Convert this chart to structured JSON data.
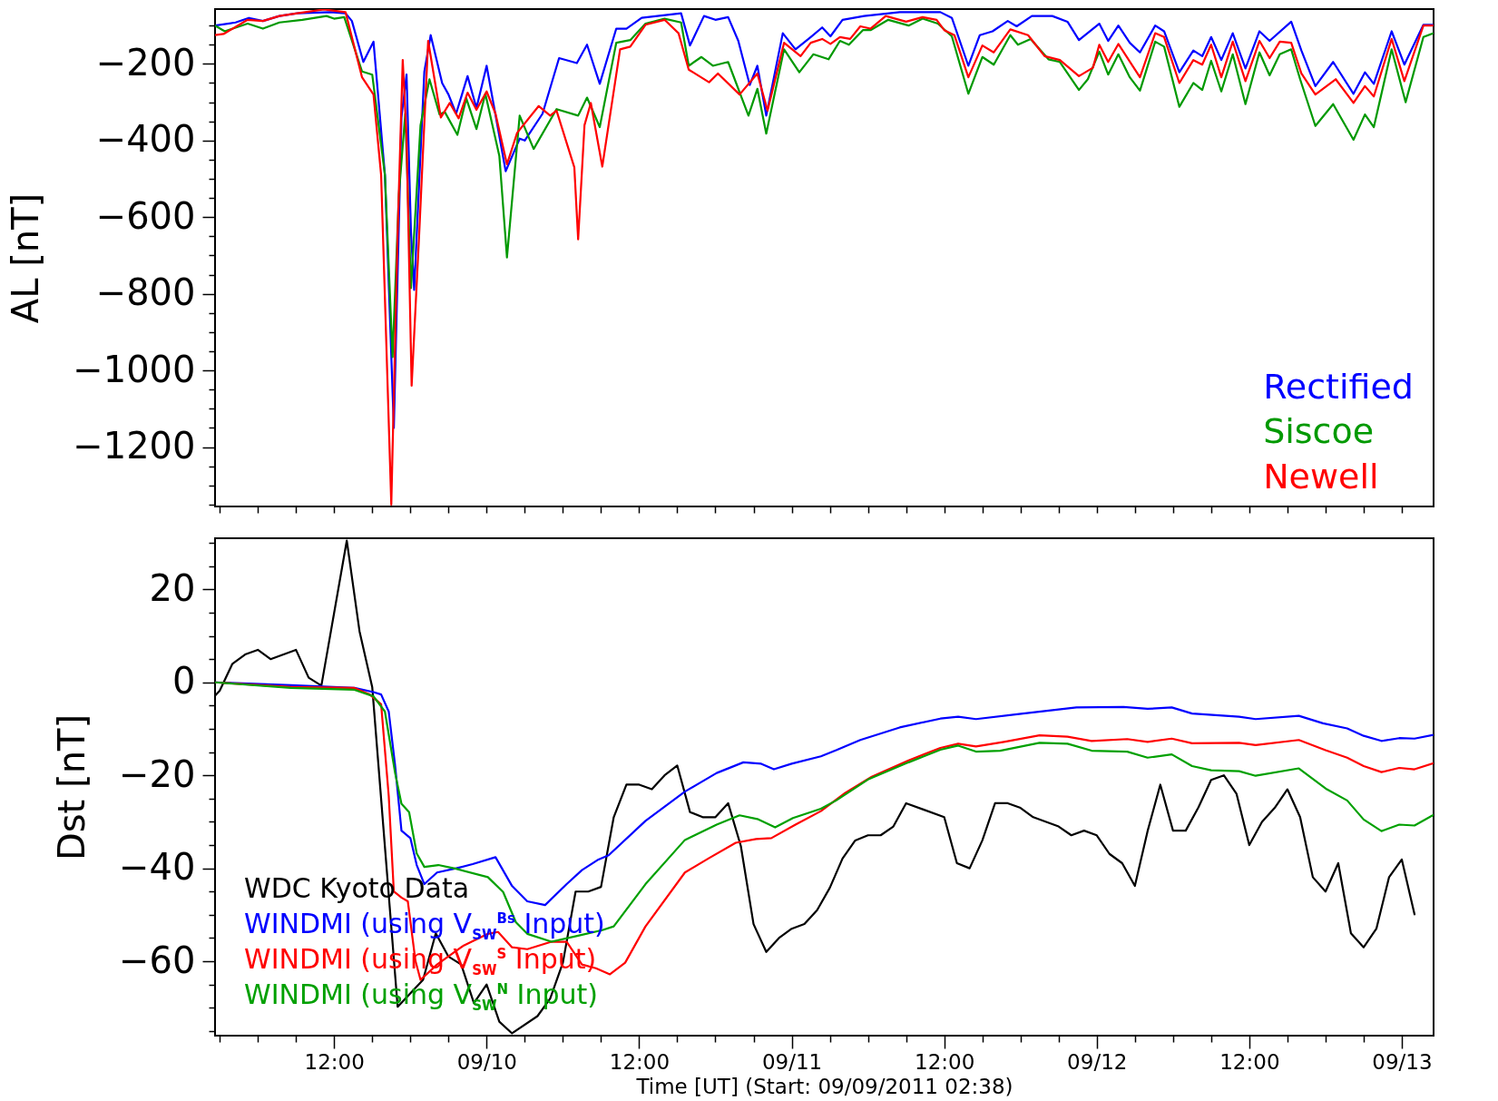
{
  "chart_data": [
    {
      "type": "line",
      "ylabel": "AL [nT]",
      "legend": "bottom right",
      "tick_labels": "y",
      "xlim": [
        "2011-09-09T02:38",
        "2011-09-13T02:30"
      ],
      "xticks": [
        {
          "value": "2011-09-09T03:00",
          "label": null
        },
        {
          "value": "2011-09-09T06:00",
          "label": null
        },
        {
          "value": "2011-09-09T09:00",
          "label": null
        },
        {
          "value": "2011-09-09T12:00",
          "label": null
        },
        {
          "value": "2011-09-09T15:00",
          "label": null
        },
        {
          "value": "2011-09-09T18:00",
          "label": null
        },
        {
          "value": "2011-09-09T21:00",
          "label": null
        },
        {
          "value": "2011-09-10T00:00",
          "label": null
        },
        {
          "value": "2011-09-10T03:00",
          "label": null
        },
        {
          "value": "2011-09-10T06:00",
          "label": null
        },
        {
          "value": "2011-09-10T09:00",
          "label": null
        },
        {
          "value": "2011-09-10T12:00",
          "label": null
        },
        {
          "value": "2011-09-10T15:00",
          "label": null
        },
        {
          "value": "2011-09-10T18:00",
          "label": null
        },
        {
          "value": "2011-09-10T21:00",
          "label": null
        },
        {
          "value": "2011-09-11T00:00",
          "label": null
        },
        {
          "value": "2011-09-11T03:00",
          "label": null
        },
        {
          "value": "2011-09-11T06:00",
          "label": null
        },
        {
          "value": "2011-09-11T09:00",
          "label": null
        },
        {
          "value": "2011-09-11T12:00",
          "label": null
        },
        {
          "value": "2011-09-11T15:00",
          "label": null
        },
        {
          "value": "2011-09-11T18:00",
          "label": null
        },
        {
          "value": "2011-09-11T21:00",
          "label": null
        },
        {
          "value": "2011-09-12T00:00",
          "label": null
        },
        {
          "value": "2011-09-12T03:00",
          "label": null
        },
        {
          "value": "2011-09-12T06:00",
          "label": null
        },
        {
          "value": "2011-09-12T09:00",
          "label": null
        },
        {
          "value": "2011-09-12T12:00",
          "label": null
        },
        {
          "value": "2011-09-12T15:00",
          "label": null
        },
        {
          "value": "2011-09-12T18:00",
          "label": null
        },
        {
          "value": "2011-09-12T21:00",
          "label": null
        },
        {
          "value": "2011-09-13T00:00",
          "label": null
        }
      ],
      "ylim": [
        -1355,
        -57
      ],
      "yticks": [
        {
          "value": -1350,
          "label": null
        },
        {
          "value": -1300,
          "label": null
        },
        {
          "value": -1250,
          "label": null
        },
        -1200,
        {
          "value": -1150,
          "label": null
        },
        {
          "value": -1100,
          "label": null
        },
        {
          "value": -1050,
          "label": null
        },
        -1000,
        {
          "value": -950,
          "label": null
        },
        {
          "value": -900,
          "label": null
        },
        {
          "value": -850,
          "label": null
        },
        -800,
        {
          "value": -750,
          "label": null
        },
        {
          "value": -700,
          "label": null
        },
        {
          "value": -650,
          "label": null
        },
        -600,
        {
          "value": -550,
          "label": null
        },
        {
          "value": -500,
          "label": null
        },
        {
          "value": -450,
          "label": null
        },
        -400,
        {
          "value": -350,
          "label": null
        },
        {
          "value": -300,
          "label": null
        },
        {
          "value": -250,
          "label": null
        },
        -200,
        {
          "value": -150,
          "label": null
        },
        {
          "value": -100,
          "label": null
        }
      ],
      "series": [
        {
          "name": "Rectified",
          "color": "#0000ff",
          "x": [
            "2011-09-09T02:38",
            "2011-09-09T04:15",
            "2011-09-09T05:18",
            "2011-09-09T06:24",
            "2011-09-09T07:42",
            "2011-09-09T09:06",
            "2011-09-09T11:42",
            "2011-09-09T12:54",
            "2011-09-09T13:24",
            "2011-09-09T14:18",
            "2011-09-09T15:06",
            "2011-09-09T16:00",
            "2011-09-09T16:42",
            "2011-09-09T17:18",
            "2011-09-09T17:42",
            "2011-09-09T18:03",
            "2011-09-09T18:18",
            "2011-09-09T19:06",
            "2011-09-09T19:36",
            "2011-09-09T20:30",
            "2011-09-09T21:00",
            "2011-09-09T21:36",
            "2011-09-09T22:30",
            "2011-09-09T23:12",
            "2011-09-10T00:00",
            "2011-09-10T01:30",
            "2011-09-10T02:36",
            "2011-09-10T03:00",
            "2011-09-10T04:24",
            "2011-09-10T05:42",
            "2011-09-10T07:06",
            "2011-09-10T07:54",
            "2011-09-10T08:54",
            "2011-09-10T10:12",
            "2011-09-10T11:00",
            "2011-09-10T12:12",
            "2011-09-10T15:18",
            "2011-09-10T16:00",
            "2011-09-10T17:06",
            "2011-09-10T18:00",
            "2011-09-10T19:00",
            "2011-09-10T19:48",
            "2011-09-10T20:42",
            "2011-09-10T21:18",
            "2011-09-10T22:00",
            "2011-09-10T23:18",
            "2011-09-11T00:18",
            "2011-09-11T01:30",
            "2011-09-11T02:24",
            "2011-09-11T03:03",
            "2011-09-11T04:00",
            "2011-09-11T05:42",
            "2011-09-11T08:30",
            "2011-09-11T11:42",
            "2011-09-11T12:36",
            "2011-09-11T13:54",
            "2011-09-11T14:48",
            "2011-09-11T15:48",
            "2011-09-11T17:00",
            "2011-09-11T17:42",
            "2011-09-11T18:54",
            "2011-09-11T20:30",
            "2011-09-11T21:42",
            "2011-09-11T22:36",
            "2011-09-12T00:12",
            "2011-09-12T00:54",
            "2011-09-12T01:42",
            "2011-09-12T02:36",
            "2011-09-12T03:24",
            "2011-09-12T04:36",
            "2011-09-12T05:18",
            "2011-09-12T06:30",
            "2011-09-12T07:36",
            "2011-09-12T08:18",
            "2011-09-12T09:00",
            "2011-09-12T09:48",
            "2011-09-12T10:42",
            "2011-09-12T11:42",
            "2011-09-12T12:48",
            "2011-09-12T13:36",
            "2011-09-12T15:18",
            "2011-09-12T16:06",
            "2011-09-12T17:12",
            "2011-09-12T18:36",
            "2011-09-12T20:12",
            "2011-09-12T21:06",
            "2011-09-12T21:48",
            "2011-09-12T23:12",
            "2011-09-13T00:12",
            "2011-09-13T01:42",
            "2011-09-13T02:30"
          ],
          "values": [
            -100,
            -92,
            -80,
            -88,
            -75,
            -68,
            -65,
            -68,
            -88,
            -195,
            -142,
            -490,
            -1150,
            -340,
            -228,
            -640,
            -790,
            -220,
            -125,
            -250,
            -280,
            -330,
            -232,
            -315,
            -205,
            -480,
            -395,
            -400,
            -330,
            -185,
            -198,
            -150,
            -252,
            -108,
            -108,
            -80,
            -68,
            -152,
            -75,
            -85,
            -78,
            -140,
            -255,
            -205,
            -335,
            -120,
            -162,
            -130,
            -105,
            -128,
            -85,
            -75,
            -65,
            -65,
            -80,
            -205,
            -125,
            -115,
            -88,
            -102,
            -75,
            -75,
            -90,
            -138,
            -95,
            -140,
            -100,
            -145,
            -170,
            -100,
            -115,
            -222,
            -165,
            -180,
            -130,
            -190,
            -120,
            -212,
            -115,
            -140,
            -90,
            -165,
            -258,
            -195,
            -278,
            -222,
            -252,
            -115,
            -202,
            -98,
            -98
          ]
        },
        {
          "name": "Siscoe",
          "color": "#009900",
          "x": [
            "2011-09-09T02:38",
            "2011-09-09T03:24",
            "2011-09-09T05:12",
            "2011-09-09T06:24",
            "2011-09-09T07:42",
            "2011-09-09T09:30",
            "2011-09-09T11:24",
            "2011-09-09T12:00",
            "2011-09-09T12:48",
            "2011-09-09T14:12",
            "2011-09-09T15:00",
            "2011-09-09T16:00",
            "2011-09-09T16:36",
            "2011-09-09T17:06",
            "2011-09-09T17:36",
            "2011-09-09T18:03",
            "2011-09-09T18:48",
            "2011-09-09T19:30",
            "2011-09-09T20:18",
            "2011-09-09T20:42",
            "2011-09-09T21:42",
            "2011-09-09T22:24",
            "2011-09-09T23:12",
            "2011-09-09T23:54",
            "2011-09-10T01:00",
            "2011-09-10T01:36",
            "2011-09-10T02:36",
            "2011-09-10T03:42",
            "2011-09-10T05:30",
            "2011-09-10T07:12",
            "2011-09-10T07:54",
            "2011-09-10T08:54",
            "2011-09-10T10:12",
            "2011-09-10T11:18",
            "2011-09-10T12:30",
            "2011-09-10T14:00",
            "2011-09-10T15:18",
            "2011-09-10T15:54",
            "2011-09-10T16:54",
            "2011-09-10T17:48",
            "2011-09-10T19:00",
            "2011-09-10T20:36",
            "2011-09-10T21:18",
            "2011-09-10T22:00",
            "2011-09-10T23:24",
            "2011-09-11T00:36",
            "2011-09-11T01:42",
            "2011-09-11T02:54",
            "2011-09-11T03:48",
            "2011-09-11T04:30",
            "2011-09-11T05:36",
            "2011-09-11T06:12",
            "2011-09-11T07:36",
            "2011-09-11T09:12",
            "2011-09-11T10:18",
            "2011-09-11T11:30",
            "2011-09-11T12:36",
            "2011-09-11T13:54",
            "2011-09-11T15:00",
            "2011-09-11T15:54",
            "2011-09-11T17:12",
            "2011-09-11T17:48",
            "2011-09-11T18:48",
            "2011-09-11T20:12",
            "2011-09-11T21:06",
            "2011-09-11T22:36",
            "2011-09-11T23:18",
            "2011-09-12T00:12",
            "2011-09-12T00:54",
            "2011-09-12T01:42",
            "2011-09-12T02:36",
            "2011-09-12T03:24",
            "2011-09-12T04:36",
            "2011-09-12T05:18",
            "2011-09-12T06:30",
            "2011-09-12T07:36",
            "2011-09-12T08:18",
            "2011-09-12T09:00",
            "2011-09-12T09:48",
            "2011-09-12T10:42",
            "2011-09-12T11:42",
            "2011-09-12T12:48",
            "2011-09-12T13:36",
            "2011-09-12T14:24",
            "2011-09-12T15:18",
            "2011-09-12T16:00",
            "2011-09-12T17:12",
            "2011-09-12T18:36",
            "2011-09-12T20:12",
            "2011-09-12T21:06",
            "2011-09-12T21:48",
            "2011-09-12T23:12",
            "2011-09-13T00:18",
            "2011-09-13T01:42",
            "2011-09-13T02:30"
          ],
          "values": [
            -100,
            -115,
            -95,
            -108,
            -92,
            -85,
            -75,
            -82,
            -78,
            -220,
            -228,
            -490,
            -965,
            -540,
            -330,
            -785,
            -360,
            -240,
            -332,
            -325,
            -385,
            -290,
            -370,
            -278,
            -440,
            -705,
            -335,
            -422,
            -318,
            -335,
            -288,
            -365,
            -145,
            -138,
            -95,
            -82,
            -92,
            -205,
            -182,
            -205,
            -195,
            -335,
            -265,
            -382,
            -162,
            -222,
            -175,
            -188,
            -140,
            -150,
            -112,
            -112,
            -85,
            -100,
            -82,
            -95,
            -128,
            -278,
            -182,
            -202,
            -125,
            -150,
            -135,
            -188,
            -195,
            -268,
            -240,
            -168,
            -228,
            -175,
            -235,
            -270,
            -142,
            -155,
            -312,
            -250,
            -268,
            -192,
            -272,
            -175,
            -305,
            -170,
            -230,
            -175,
            -162,
            -240,
            -362,
            -305,
            -398,
            -332,
            -365,
            -162,
            -300,
            -130,
            -120
          ]
        },
        {
          "name": "Newell",
          "color": "#ff0000",
          "x": [
            "2011-09-09T02:38",
            "2011-09-09T03:18",
            "2011-09-09T05:12",
            "2011-09-09T06:24",
            "2011-09-09T07:42",
            "2011-09-09T09:06",
            "2011-09-09T11:12",
            "2011-09-09T12:54",
            "2011-09-09T14:12",
            "2011-09-09T15:06",
            "2011-09-09T15:42",
            "2011-09-09T16:30",
            "2011-09-09T17:00",
            "2011-09-09T17:24",
            "2011-09-09T17:42",
            "2011-09-09T18:06",
            "2011-09-09T18:42",
            "2011-09-09T19:24",
            "2011-09-09T20:24",
            "2011-09-09T21:06",
            "2011-09-09T21:48",
            "2011-09-09T22:30",
            "2011-09-09T23:12",
            "2011-09-10T00:00",
            "2011-09-10T00:42",
            "2011-09-10T01:36",
            "2011-09-10T02:24",
            "2011-09-10T04:06",
            "2011-09-10T05:00",
            "2011-09-10T05:30",
            "2011-09-10T06:54",
            "2011-09-10T07:12",
            "2011-09-10T07:42",
            "2011-09-10T08:12",
            "2011-09-10T09:06",
            "2011-09-10T10:30",
            "2011-09-10T11:18",
            "2011-09-10T12:30",
            "2011-09-10T14:00",
            "2011-09-10T15:06",
            "2011-09-10T15:54",
            "2011-09-10T17:30",
            "2011-09-10T18:12",
            "2011-09-10T19:54",
            "2011-09-10T21:18",
            "2011-09-10T22:06",
            "2011-09-10T23:24",
            "2011-09-11T00:42",
            "2011-09-11T01:30",
            "2011-09-11T02:24",
            "2011-09-11T03:03",
            "2011-09-11T03:48",
            "2011-09-11T04:36",
            "2011-09-11T05:24",
            "2011-09-11T06:12",
            "2011-09-11T07:24",
            "2011-09-11T09:00",
            "2011-09-11T10:18",
            "2011-09-11T11:24",
            "2011-09-11T12:00",
            "2011-09-11T12:48",
            "2011-09-11T13:54",
            "2011-09-11T15:00",
            "2011-09-11T15:54",
            "2011-09-11T17:12",
            "2011-09-11T18:36",
            "2011-09-11T19:54",
            "2011-09-11T21:06",
            "2011-09-11T22:36",
            "2011-09-11T23:42",
            "2011-09-12T00:12",
            "2011-09-12T00:54",
            "2011-09-12T01:42",
            "2011-09-12T03:24",
            "2011-09-12T04:36",
            "2011-09-12T05:18",
            "2011-09-12T06:30",
            "2011-09-12T07:36",
            "2011-09-12T08:18",
            "2011-09-12T09:00",
            "2011-09-12T09:48",
            "2011-09-12T10:42",
            "2011-09-12T11:42",
            "2011-09-12T12:48",
            "2011-09-12T13:36",
            "2011-09-12T14:24",
            "2011-09-12T15:18",
            "2011-09-12T16:06",
            "2011-09-12T17:12",
            "2011-09-12T18:48",
            "2011-09-12T20:12",
            "2011-09-12T21:06",
            "2011-09-12T21:48",
            "2011-09-12T23:12",
            "2011-09-13T00:12",
            "2011-09-13T01:42",
            "2011-09-13T02:30"
          ],
          "values": [
            -125,
            -122,
            -85,
            -88,
            -75,
            -68,
            -58,
            -65,
            -235,
            -280,
            -490,
            -1350,
            -640,
            -190,
            -390,
            -1040,
            -640,
            -140,
            -340,
            -302,
            -342,
            -275,
            -320,
            -272,
            -330,
            -462,
            -380,
            -310,
            -335,
            -322,
            -470,
            -658,
            -360,
            -302,
            -468,
            -162,
            -155,
            -98,
            -85,
            -120,
            -215,
            -248,
            -225,
            -280,
            -225,
            -322,
            -145,
            -180,
            -145,
            -135,
            -148,
            -130,
            -135,
            -102,
            -108,
            -75,
            -90,
            -78,
            -85,
            -112,
            -125,
            -235,
            -152,
            -170,
            -110,
            -125,
            -180,
            -190,
            -232,
            -210,
            -150,
            -195,
            -148,
            -235,
            -120,
            -130,
            -250,
            -190,
            -202,
            -150,
            -235,
            -142,
            -245,
            -140,
            -185,
            -142,
            -145,
            -225,
            -280,
            -240,
            -302,
            -258,
            -285,
            -135,
            -245,
            -100,
            -100
          ]
        }
      ]
    },
    {
      "type": "line",
      "xlabel": "Time [UT] (Start: 09/09/2011 02:38)",
      "ylabel": "Dst [nT]",
      "legend": "bottom left",
      "xlim": [
        "2011-09-09T02:38",
        "2011-09-13T02:30"
      ],
      "xticks": [
        {
          "value": "2011-09-09T03:00",
          "label": null
        },
        {
          "value": "2011-09-09T06:00",
          "label": null
        },
        {
          "value": "2011-09-09T09:00",
          "label": null
        },
        {
          "value": "2011-09-09T12:00",
          "label": "12:00"
        },
        {
          "value": "2011-09-09T15:00",
          "label": null
        },
        {
          "value": "2011-09-09T18:00",
          "label": null
        },
        {
          "value": "2011-09-09T21:00",
          "label": null
        },
        {
          "value": "2011-09-10T00:00",
          "label": "09/10"
        },
        {
          "value": "2011-09-10T03:00",
          "label": null
        },
        {
          "value": "2011-09-10T06:00",
          "label": null
        },
        {
          "value": "2011-09-10T09:00",
          "label": null
        },
        {
          "value": "2011-09-10T12:00",
          "label": "12:00"
        },
        {
          "value": "2011-09-10T15:00",
          "label": null
        },
        {
          "value": "2011-09-10T18:00",
          "label": null
        },
        {
          "value": "2011-09-10T21:00",
          "label": null
        },
        {
          "value": "2011-09-11T00:00",
          "label": "09/11"
        },
        {
          "value": "2011-09-11T03:00",
          "label": null
        },
        {
          "value": "2011-09-11T06:00",
          "label": null
        },
        {
          "value": "2011-09-11T09:00",
          "label": null
        },
        {
          "value": "2011-09-11T12:00",
          "label": "12:00"
        },
        {
          "value": "2011-09-11T15:00",
          "label": null
        },
        {
          "value": "2011-09-11T18:00",
          "label": null
        },
        {
          "value": "2011-09-11T21:00",
          "label": null
        },
        {
          "value": "2011-09-12T00:00",
          "label": "09/12"
        },
        {
          "value": "2011-09-12T03:00",
          "label": null
        },
        {
          "value": "2011-09-12T06:00",
          "label": null
        },
        {
          "value": "2011-09-12T09:00",
          "label": null
        },
        {
          "value": "2011-09-12T12:00",
          "label": "12:00"
        },
        {
          "value": "2011-09-12T15:00",
          "label": null
        },
        {
          "value": "2011-09-12T18:00",
          "label": null
        },
        {
          "value": "2011-09-12T21:00",
          "label": null
        },
        {
          "value": "2011-09-13T00:00",
          "label": "09/13"
        }
      ],
      "ylim": [
        -76,
        31
      ],
      "yticks": [
        {
          "value": -75,
          "label": null
        },
        {
          "value": -70,
          "label": null
        },
        {
          "value": -65,
          "label": null
        },
        -60,
        {
          "value": -55,
          "label": null
        },
        {
          "value": -50,
          "label": null
        },
        {
          "value": -45,
          "label": null
        },
        -40,
        {
          "value": -35,
          "label": null
        },
        {
          "value": -30,
          "label": null
        },
        {
          "value": -25,
          "label": null
        },
        -20,
        {
          "value": -15,
          "label": null
        },
        {
          "value": -10,
          "label": null
        },
        {
          "value": -5,
          "label": null
        },
        0,
        {
          "value": 5,
          "label": null
        },
        {
          "value": 10,
          "label": null
        },
        {
          "value": 15,
          "label": null
        },
        20,
        {
          "value": 25,
          "label": null
        },
        {
          "value": 30,
          "label": null
        }
      ],
      "series": [
        {
          "name": "WDC Kyoto Data",
          "color": "#000000",
          "x": [
            "2011-09-09T02:38",
            "2011-09-09T03:00",
            "2011-09-09T04:00",
            "2011-09-09T05:00",
            "2011-09-09T06:00",
            "2011-09-09T07:00",
            "2011-09-09T09:00",
            "2011-09-09T10:00",
            "2011-09-09T11:00",
            "2011-09-09T13:00",
            "2011-09-09T14:00",
            "2011-09-09T15:00",
            "2011-09-09T17:00",
            "2011-09-09T19:00",
            "2011-09-09T20:00",
            "2011-09-09T21:00",
            "2011-09-09T22:00",
            "2011-09-09T23:00",
            "2011-09-10T00:00",
            "2011-09-10T01:00",
            "2011-09-10T02:00",
            "2011-09-10T04:00",
            "2011-09-10T05:00",
            "2011-09-10T06:00",
            "2011-09-10T07:00",
            "2011-09-10T08:00",
            "2011-09-10T09:00",
            "2011-09-10T10:00",
            "2011-09-10T11:00",
            "2011-09-10T12:00",
            "2011-09-10T13:00",
            "2011-09-10T14:00",
            "2011-09-10T15:00",
            "2011-09-10T16:00",
            "2011-09-10T17:00",
            "2011-09-10T18:00",
            "2011-09-10T19:00",
            "2011-09-10T20:00",
            "2011-09-10T21:00",
            "2011-09-10T22:00",
            "2011-09-10T23:00",
            "2011-09-11T00:00",
            "2011-09-11T01:00",
            "2011-09-11T02:00",
            "2011-09-11T03:00",
            "2011-09-11T04:00",
            "2011-09-11T05:00",
            "2011-09-11T06:00",
            "2011-09-11T07:00",
            "2011-09-11T08:00",
            "2011-09-11T09:00",
            "2011-09-11T12:00",
            "2011-09-11T13:00",
            "2011-09-11T14:00",
            "2011-09-11T15:00",
            "2011-09-11T16:00",
            "2011-09-11T17:00",
            "2011-09-11T18:00",
            "2011-09-11T19:00",
            "2011-09-11T21:00",
            "2011-09-11T22:00",
            "2011-09-11T23:00",
            "2011-09-12T00:00",
            "2011-09-12T01:00",
            "2011-09-12T02:00",
            "2011-09-12T03:00",
            "2011-09-12T04:00",
            "2011-09-12T05:00",
            "2011-09-12T06:00",
            "2011-09-12T07:00",
            "2011-09-12T08:00",
            "2011-09-12T09:00",
            "2011-09-12T10:00",
            "2011-09-12T11:00",
            "2011-09-12T12:00",
            "2011-09-12T13:00",
            "2011-09-12T14:00",
            "2011-09-12T15:00",
            "2011-09-12T16:00",
            "2011-09-12T17:00",
            "2011-09-12T18:00",
            "2011-09-12T19:00",
            "2011-09-12T20:00",
            "2011-09-12T21:00",
            "2011-09-12T22:00",
            "2011-09-12T23:00",
            "2011-09-13T00:00",
            "2011-09-13T01:00"
          ],
          "values": [
            -2.9,
            -1.8,
            4,
            6,
            7,
            5,
            7,
            1,
            -0.7,
            30.5,
            11,
            -1,
            -69.8,
            -64,
            -54,
            -59,
            -60.7,
            -69,
            -65,
            -73,
            -75.5,
            -71.8,
            -68,
            -60.3,
            -45,
            -45,
            -44,
            -29,
            -22,
            -22,
            -23,
            -20,
            -17.9,
            -27.9,
            -29,
            -29,
            -26,
            -35.2,
            -52,
            -58,
            -55,
            -53,
            -52,
            -49,
            -44.2,
            -37.9,
            -34,
            -32.9,
            -32.9,
            -31,
            -26,
            -29,
            -38.9,
            -40,
            -34,
            -26,
            -26,
            -27,
            -29,
            -31,
            -32.9,
            -31.9,
            -32.9,
            -36.9,
            -38.9,
            -43.8,
            -32,
            -22,
            -31.9,
            -31.9,
            -26.9,
            -21,
            -20,
            -24,
            -35,
            -30,
            -27,
            -23,
            -29,
            -41.9,
            -45,
            -38.9,
            -54,
            -57,
            -53,
            -41.9,
            -38.1,
            -49.9
          ]
        },
        {
          "name": "WINDMI (using V$_{SW}$$^{Bs}$ Input)",
          "color": "#0000ff",
          "x": [
            "2011-09-09T02:38",
            "2011-09-09T08:36",
            "2011-09-09T13:36",
            "2011-09-09T15:06",
            "2011-09-09T15:42",
            "2011-09-09T16:18",
            "2011-09-09T16:48",
            "2011-09-09T17:18",
            "2011-09-09T18:00",
            "2011-09-09T18:30",
            "2011-09-09T19:06",
            "2011-09-09T20:06",
            "2011-09-09T21:36",
            "2011-09-09T22:54",
            "2011-09-10T00:42",
            "2011-09-10T02:00",
            "2011-09-10T03:12",
            "2011-09-10T04:36",
            "2011-09-10T06:18",
            "2011-09-10T07:30",
            "2011-09-10T08:48",
            "2011-09-10T09:36",
            "2011-09-10T12:30",
            "2011-09-10T15:36",
            "2011-09-10T18:06",
            "2011-09-10T20:12",
            "2011-09-10T21:36",
            "2011-09-10T22:36",
            "2011-09-11T00:00",
            "2011-09-11T02:18",
            "2011-09-11T03:30",
            "2011-09-11T05:24",
            "2011-09-11T08:30",
            "2011-09-11T11:42",
            "2011-09-11T13:06",
            "2011-09-11T14:30",
            "2011-09-11T17:54",
            "2011-09-11T22:24",
            "2011-09-12T02:06",
            "2011-09-12T04:00",
            "2011-09-12T05:54",
            "2011-09-12T07:30",
            "2011-09-12T11:12",
            "2011-09-12T12:30",
            "2011-09-12T15:54",
            "2011-09-12T17:48",
            "2011-09-12T19:42",
            "2011-09-12T21:00",
            "2011-09-12T22:24",
            "2011-09-12T23:48",
            "2011-09-13T01:00",
            "2011-09-13T02:30"
          ],
          "values": [
            0,
            -0.6,
            -1.2,
            -2.1,
            -2.6,
            -6.3,
            -17.9,
            -31.9,
            -33.5,
            -39.3,
            -43.4,
            -40.9,
            -40,
            -39.1,
            -37.6,
            -43.8,
            -47.1,
            -47.9,
            -43.4,
            -40.4,
            -38.1,
            -37.2,
            -29.8,
            -23.5,
            -19.5,
            -17.2,
            -17.5,
            -18.7,
            -17.5,
            -15.9,
            -14.6,
            -12.4,
            -9.7,
            -7.8,
            -7.4,
            -7.9,
            -6.8,
            -5.4,
            -5.3,
            -5.7,
            -5.4,
            -6.7,
            -7.4,
            -7.9,
            -7.2,
            -8.8,
            -9.9,
            -11.5,
            -12.6,
            -12,
            -12.1,
            -11.3
          ]
        },
        {
          "name": "WINDMI (using V$_{SW}$$^{S}$ Input)",
          "color": "#ff0000",
          "x": [
            "2011-09-09T02:38",
            "2011-09-09T08:36",
            "2011-09-09T13:36",
            "2011-09-09T14:48",
            "2011-09-09T15:42",
            "2011-09-09T16:18",
            "2011-09-09T16:42",
            "2011-09-09T17:18",
            "2011-09-09T17:48",
            "2011-09-09T18:24",
            "2011-09-09T18:48",
            "2011-09-09T20:06",
            "2011-09-09T22:12",
            "2011-09-10T00:06",
            "2011-09-10T00:54",
            "2011-09-10T02:00",
            "2011-09-10T03:12",
            "2011-09-10T05:06",
            "2011-09-10T06:18",
            "2011-09-10T07:30",
            "2011-09-10T08:36",
            "2011-09-10T09:42",
            "2011-09-10T10:54",
            "2011-09-10T12:30",
            "2011-09-10T15:36",
            "2011-09-10T17:30",
            "2011-09-10T19:36",
            "2011-09-10T21:12",
            "2011-09-10T22:24",
            "2011-09-11T00:18",
            "2011-09-11T02:18",
            "2011-09-11T04:12",
            "2011-09-11T06:18",
            "2011-09-11T09:12",
            "2011-09-11T11:42",
            "2011-09-11T13:06",
            "2011-09-11T14:30",
            "2011-09-11T16:42",
            "2011-09-11T19:30",
            "2011-09-11T21:42",
            "2011-09-11T23:36",
            "2011-09-12T02:24",
            "2011-09-12T04:00",
            "2011-09-12T05:54",
            "2011-09-12T07:30",
            "2011-09-12T11:12",
            "2011-09-12T12:30",
            "2011-09-12T15:54",
            "2011-09-12T18:00",
            "2011-09-12T19:42",
            "2011-09-12T21:00",
            "2011-09-12T22:24",
            "2011-09-12T23:48",
            "2011-09-13T01:00",
            "2011-09-13T02:30"
          ],
          "values": [
            0,
            -1,
            -1.2,
            -2.6,
            -4.7,
            -24.5,
            -45,
            -46.3,
            -47.1,
            -59.9,
            -64,
            -60.7,
            -56.6,
            -54.1,
            -53.7,
            -57,
            -57.4,
            -55.8,
            -55.8,
            -60.7,
            -61.5,
            -62.8,
            -60.3,
            -52.5,
            -40.9,
            -37.8,
            -34.5,
            -33.7,
            -33.5,
            -30.6,
            -27.7,
            -23.8,
            -20.3,
            -16.8,
            -14.1,
            -13.2,
            -13.8,
            -12.8,
            -11.4,
            -11.7,
            -12.6,
            -12.2,
            -12.8,
            -12.1,
            -13.1,
            -13,
            -13.5,
            -12.4,
            -14.6,
            -16.2,
            -18,
            -19.3,
            -18.4,
            -18.7,
            -17.4
          ]
        },
        {
          "name": "WINDMI (using V$_{SW}$$^{N}$ Input)",
          "color": "#00a000",
          "x": [
            "2011-09-09T02:38",
            "2011-09-09T08:36",
            "2011-09-09T13:36",
            "2011-09-09T15:06",
            "2011-09-09T16:00",
            "2011-09-09T16:48",
            "2011-09-09T17:18",
            "2011-09-09T17:54",
            "2011-09-09T18:30",
            "2011-09-09T19:06",
            "2011-09-09T20:12",
            "2011-09-09T21:36",
            "2011-09-10T00:06",
            "2011-09-10T01:18",
            "2011-09-10T02:18",
            "2011-09-10T03:12",
            "2011-09-10T05:06",
            "2011-09-10T07:12",
            "2011-09-10T09:06",
            "2011-09-10T10:00",
            "2011-09-10T12:30",
            "2011-09-10T15:36",
            "2011-09-10T18:06",
            "2011-09-10T19:54",
            "2011-09-10T21:18",
            "2011-09-10T22:42",
            "2011-09-11T00:06",
            "2011-09-11T02:18",
            "2011-09-11T03:30",
            "2011-09-11T06:00",
            "2011-09-11T09:12",
            "2011-09-11T11:42",
            "2011-09-11T13:06",
            "2011-09-11T14:30",
            "2011-09-11T16:24",
            "2011-09-11T19:30",
            "2011-09-11T21:42",
            "2011-09-11T23:36",
            "2011-09-12T02:24",
            "2011-09-12T04:00",
            "2011-09-12T05:54",
            "2011-09-12T07:30",
            "2011-09-12T09:00",
            "2011-09-12T11:12",
            "2011-09-12T12:30",
            "2011-09-12T15:54",
            "2011-09-12T18:06",
            "2011-09-12T19:42",
            "2011-09-12T21:00",
            "2011-09-12T22:24",
            "2011-09-12T23:48",
            "2011-09-13T01:00",
            "2011-09-13T02:30"
          ],
          "values": [
            0,
            -1.2,
            -1.6,
            -3,
            -6.3,
            -19.5,
            -26.1,
            -27.9,
            -36.8,
            -39.7,
            -39.3,
            -40.1,
            -41.9,
            -45.1,
            -51.6,
            -54.1,
            -55.8,
            -54.5,
            -53.3,
            -52.5,
            -43.4,
            -33.9,
            -30.6,
            -28.6,
            -29.4,
            -31.2,
            -29.2,
            -27.2,
            -25.4,
            -20.9,
            -17.2,
            -14.5,
            -13.6,
            -14.9,
            -14.7,
            -13,
            -13.2,
            -14.7,
            -14.9,
            -16.2,
            -15.5,
            -18,
            -18.9,
            -19.1,
            -20.1,
            -18.5,
            -23,
            -25.4,
            -29.5,
            -32,
            -30.6,
            -30.8,
            -28.5
          ]
        }
      ]
    }
  ]
}
